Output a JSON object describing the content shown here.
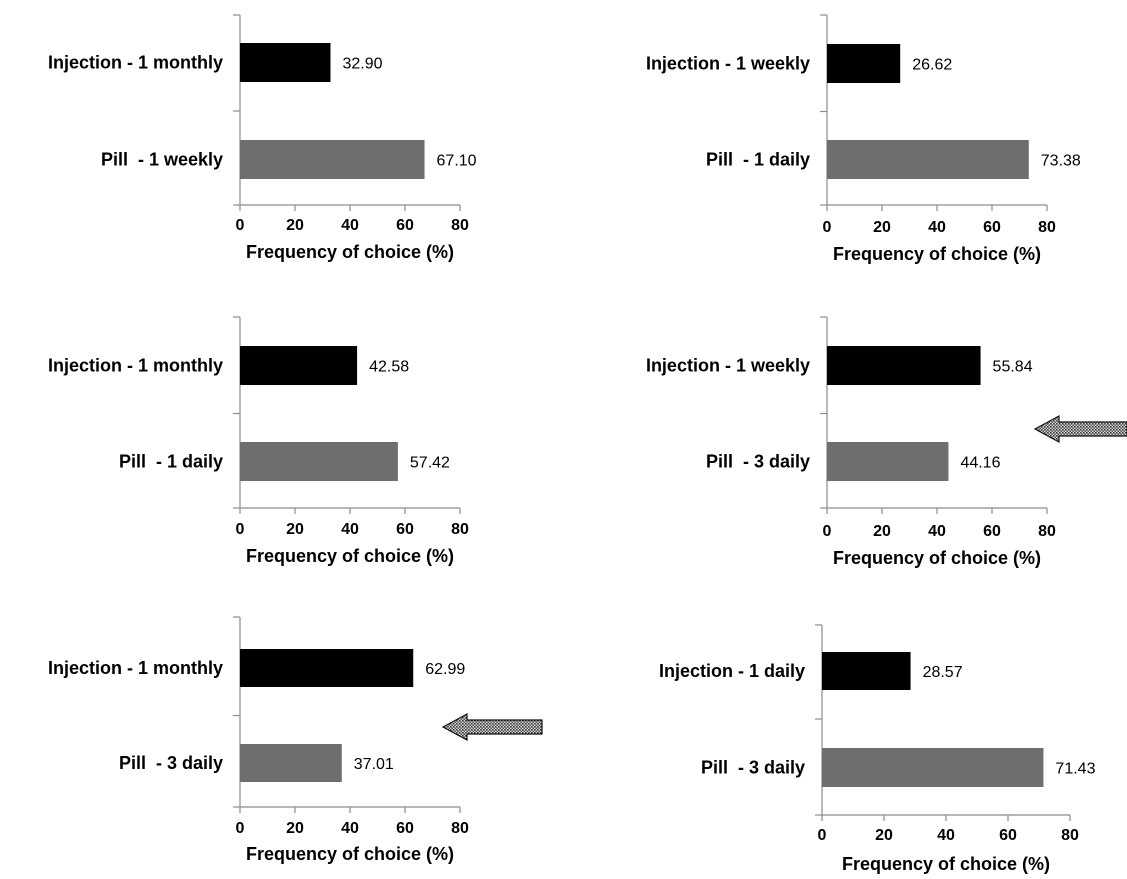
{
  "chart_data": [
    {
      "type": "bar",
      "orientation": "horizontal",
      "categories": [
        "Injection - 1 monthly",
        "Pill  - 1 weekly"
      ],
      "values": [
        32.9,
        67.1
      ],
      "value_labels": [
        "32.90",
        "67.10"
      ],
      "colors": [
        "#000000",
        "#6e6e6e"
      ],
      "xlabel": "Frequency of choice (%)",
      "xlim": [
        0,
        80
      ],
      "xticks": [
        "0",
        "20",
        "40",
        "60",
        "80"
      ],
      "arrow": false
    },
    {
      "type": "bar",
      "orientation": "horizontal",
      "categories": [
        "Injection - 1 weekly",
        "Pill  - 1 daily"
      ],
      "values": [
        26.62,
        73.38
      ],
      "value_labels": [
        "26.62",
        "73.38"
      ],
      "colors": [
        "#000000",
        "#6e6e6e"
      ],
      "xlabel": "Frequency of choice (%)",
      "xlim": [
        0,
        80
      ],
      "xticks": [
        "0",
        "20",
        "40",
        "60",
        "80"
      ],
      "arrow": false
    },
    {
      "type": "bar",
      "orientation": "horizontal",
      "categories": [
        "Injection - 1 monthly",
        "Pill  - 1 daily"
      ],
      "values": [
        42.58,
        57.42
      ],
      "value_labels": [
        "42.58",
        "57.42"
      ],
      "colors": [
        "#000000",
        "#6e6e6e"
      ],
      "xlabel": "Frequency of choice (%)",
      "xlim": [
        0,
        80
      ],
      "xticks": [
        "0",
        "20",
        "40",
        "60",
        "80"
      ],
      "arrow": false
    },
    {
      "type": "bar",
      "orientation": "horizontal",
      "categories": [
        "Injection - 1 weekly",
        "Pill  - 3 daily"
      ],
      "values": [
        55.84,
        44.16
      ],
      "value_labels": [
        "55.84",
        "44.16"
      ],
      "colors": [
        "#000000",
        "#6e6e6e"
      ],
      "xlabel": "Frequency of choice (%)",
      "xlim": [
        0,
        80
      ],
      "xticks": [
        "0",
        "20",
        "40",
        "60",
        "80"
      ],
      "arrow": true
    },
    {
      "type": "bar",
      "orientation": "horizontal",
      "categories": [
        "Injection - 1 monthly",
        "Pill  - 3 daily"
      ],
      "values": [
        62.99,
        37.01
      ],
      "value_labels": [
        "62.99",
        "37.01"
      ],
      "colors": [
        "#000000",
        "#6e6e6e"
      ],
      "xlabel": "Frequency of choice (%)",
      "xlim": [
        0,
        80
      ],
      "xticks": [
        "0",
        "20",
        "40",
        "60",
        "80"
      ],
      "arrow": true
    },
    {
      "type": "bar",
      "orientation": "horizontal",
      "categories": [
        "Injection - 1 daily",
        "Pill  - 3 daily"
      ],
      "values": [
        28.57,
        71.43
      ],
      "value_labels": [
        "28.57",
        "71.43"
      ],
      "colors": [
        "#000000",
        "#6e6e6e"
      ],
      "xlabel": "Frequency of choice (%)",
      "xlim": [
        0,
        80
      ],
      "xticks": [
        "0",
        "20",
        "40",
        "60",
        "80"
      ],
      "arrow": false
    }
  ]
}
